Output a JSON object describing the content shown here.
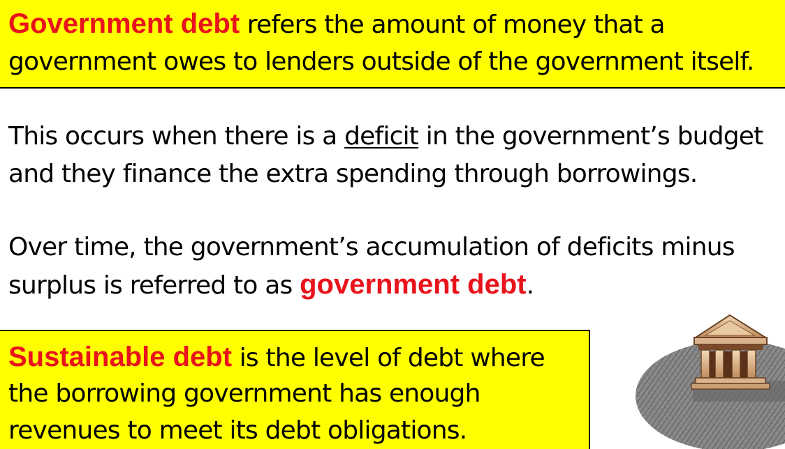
{
  "definition_box": {
    "term": "Government debt",
    "line1_rest": " refers the amount of money that a",
    "line2": "government owes to lenders outside of the government itself."
  },
  "deficit_paragraph": {
    "line1_before": "This occurs when there is a ",
    "underlined_word": "deficit",
    "line1_after": " in the government’s budget",
    "line2": "and they finance the extra spending through borrowings."
  },
  "accumulation_paragraph": {
    "line1": "Over time, the government’s accumulation of deficits minus",
    "line2_before": "surplus is referred to as ",
    "term": "government debt",
    "line2_after": "."
  },
  "sustainable_box": {
    "term": "Sustainable debt",
    "line1_rest": " is the level of debt where",
    "line2": "the borrowing government has enough",
    "line3": "revenues to meet its debt obligations."
  },
  "illustration": {
    "icon": "bank-building-icon"
  },
  "colors": {
    "highlight": "#ffff00",
    "keyword": "#e8131b",
    "text": "#000000"
  }
}
